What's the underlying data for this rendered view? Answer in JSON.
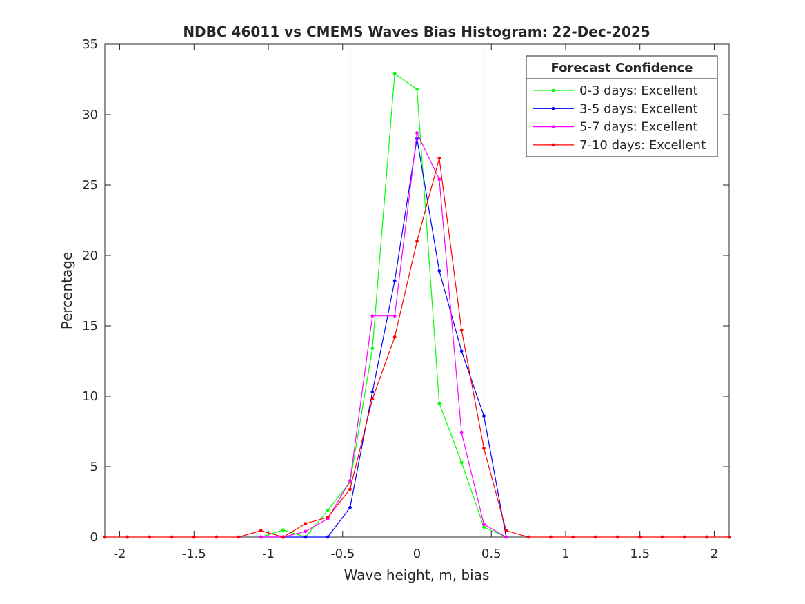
{
  "chart_data": {
    "type": "line",
    "title": "NDBC 46011 vs CMEMS Waves Bias Histogram: 22-Dec-2025",
    "xlabel": "Wave height, m, bias",
    "ylabel": "Percentage",
    "xlim": [
      -2.1,
      2.1
    ],
    "ylim": [
      0,
      35
    ],
    "xticks": [
      -2,
      -1.5,
      -1,
      -0.5,
      0,
      0.5,
      1,
      1.5,
      2
    ],
    "xtick_labels": [
      "-2",
      "-1.5",
      "-1",
      "-0.5",
      "0",
      "0.5",
      "1",
      "1.5",
      "2"
    ],
    "yticks": [
      0,
      5,
      10,
      15,
      20,
      25,
      30,
      35
    ],
    "ytick_labels": [
      "0",
      "5",
      "10",
      "15",
      "20",
      "25",
      "30",
      "35"
    ],
    "vlines_solid": [
      -0.45,
      0.45
    ],
    "vline_dotted": 0,
    "legend": {
      "title": "Forecast Confidence",
      "position": "top-right"
    },
    "series": [
      {
        "name": "0-3 days: Excellent",
        "color": "#00ff00",
        "x": [
          -1.05,
          -0.9,
          -0.75,
          -0.6,
          -0.45,
          -0.3,
          -0.15,
          0,
          0.15,
          0.3,
          0.45,
          0.6
        ],
        "values": [
          0,
          0.5,
          0,
          1.9,
          3.9,
          13.4,
          32.9,
          31.8,
          9.5,
          5.3,
          0.7,
          0
        ]
      },
      {
        "name": "3-5 days: Excellent",
        "color": "#0000ff",
        "x": [
          -1.05,
          -0.9,
          -0.75,
          -0.6,
          -0.45,
          -0.3,
          -0.15,
          0,
          0.15,
          0.3,
          0.45,
          0.6
        ],
        "values": [
          0,
          0,
          0,
          0,
          2.1,
          10.3,
          18.2,
          28.3,
          18.9,
          13.2,
          8.6,
          0
        ]
      },
      {
        "name": "5-7 days: Excellent",
        "color": "#ff00ff",
        "x": [
          -1.05,
          -0.9,
          -0.75,
          -0.6,
          -0.45,
          -0.3,
          -0.15,
          0,
          0.15,
          0.3,
          0.45,
          0.6
        ],
        "values": [
          0,
          0,
          0.4,
          1.3,
          4.0,
          15.7,
          15.7,
          28.7,
          25.4,
          7.4,
          0.9,
          0
        ]
      },
      {
        "name": "7-10 days: Excellent",
        "color": "#ff0000",
        "x": [
          -2.1,
          -1.95,
          -1.8,
          -1.65,
          -1.5,
          -1.35,
          -1.2,
          -1.05,
          -0.9,
          -0.75,
          -0.6,
          -0.45,
          -0.3,
          -0.15,
          0,
          0.15,
          0.3,
          0.45,
          0.6,
          0.75,
          0.9,
          1.05,
          1.2,
          1.35,
          1.5,
          1.65,
          1.8,
          1.95,
          2.1
        ],
        "values": [
          0,
          0,
          0,
          0,
          0,
          0,
          0,
          0.45,
          0,
          0.95,
          1.4,
          3.4,
          9.8,
          14.2,
          21.0,
          26.9,
          14.7,
          6.3,
          0.45,
          0,
          0,
          0,
          0,
          0,
          0,
          0,
          0,
          0,
          0
        ]
      }
    ]
  }
}
